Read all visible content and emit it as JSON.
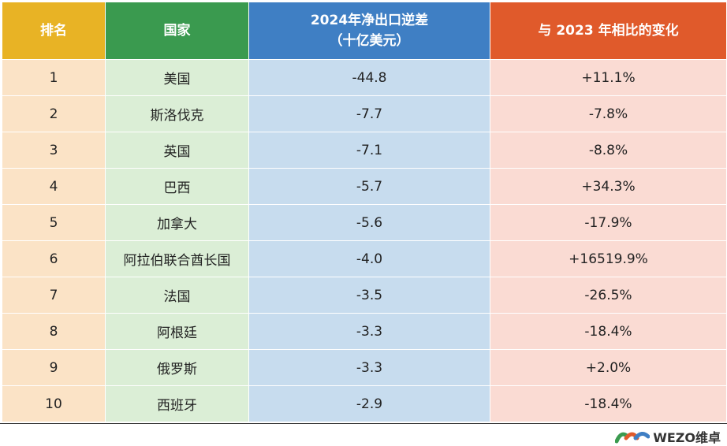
{
  "table": {
    "columns": [
      [
        "排名"
      ],
      [
        "国家"
      ],
      [
        "2024年净出口逆差",
        "（十亿美元）"
      ],
      [
        "与 2023 年相比的变化"
      ]
    ],
    "rows": [
      [
        "1",
        "美国",
        "-44.8",
        "+11.1%"
      ],
      [
        "2",
        "斯洛伐克",
        "-7.7",
        "-7.8%"
      ],
      [
        "3",
        "英国",
        "-7.1",
        "-8.8%"
      ],
      [
        "4",
        "巴西",
        "-5.7",
        "+34.3%"
      ],
      [
        "5",
        "加拿大",
        "-5.6",
        "-17.9%"
      ],
      [
        "6",
        "阿拉伯联合酋长国",
        "-4.0",
        "+16519.9%"
      ],
      [
        "7",
        "法国",
        "-3.5",
        "-26.5%"
      ],
      [
        "8",
        "阿根廷",
        "-3.3",
        "-18.4%"
      ],
      [
        "9",
        "俄罗斯",
        "-3.3",
        "+2.0%"
      ],
      [
        "10",
        "西班牙",
        "-2.9",
        "-18.4%"
      ]
    ]
  },
  "footer": {
    "logo": "WEZO维卓"
  }
}
